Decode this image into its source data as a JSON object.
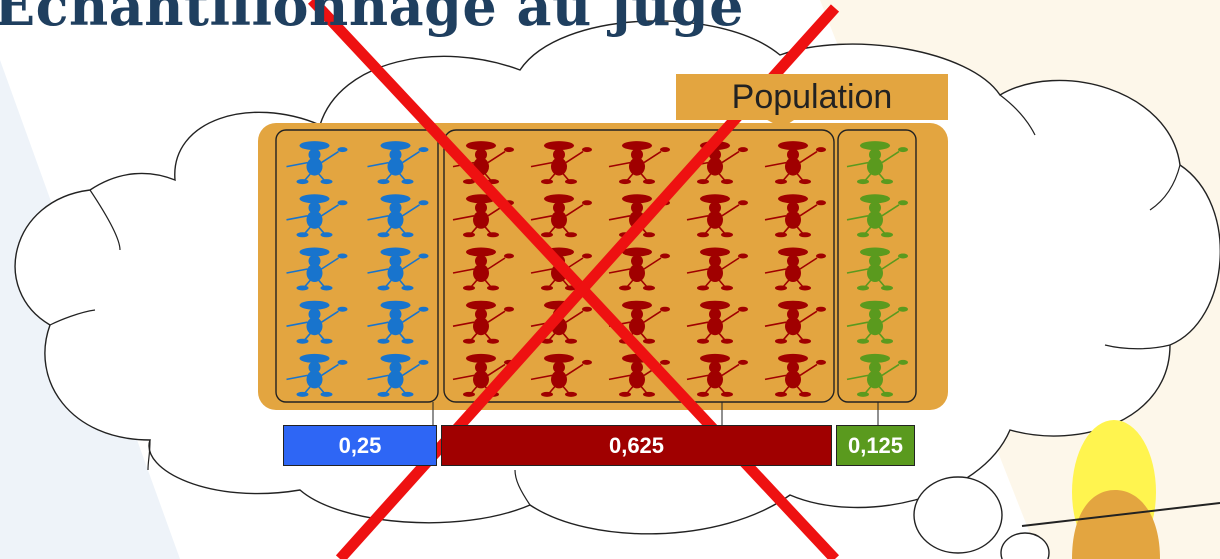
{
  "slide": {
    "title": "Échantillonnage au juge",
    "population_label": "Population"
  },
  "groups": [
    {
      "name": "blue",
      "color": "#1874CD",
      "columns": 2,
      "rows": 5
    },
    {
      "name": "red",
      "color": "#A00000",
      "columns": 5,
      "rows": 5
    },
    {
      "name": "green",
      "color": "#5A9A1E",
      "columns": 1,
      "rows": 5
    }
  ],
  "proportions": [
    {
      "label": "0,25",
      "value": 0.25,
      "color": "#2E66F5"
    },
    {
      "label": "0,625",
      "value": 0.625,
      "color": "#A00000"
    },
    {
      "label": "0,125",
      "value": 0.125,
      "color": "#5A9A1E"
    }
  ],
  "colors": {
    "population_fill": "#E3A540",
    "cross": "#EE1111",
    "title": "#1f3f5f"
  }
}
